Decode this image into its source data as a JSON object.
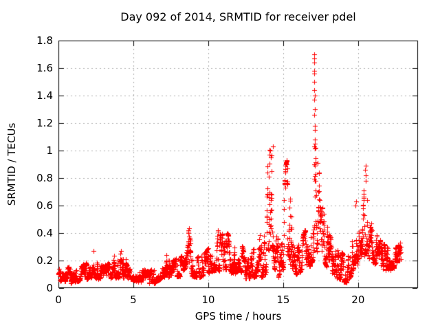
{
  "chart_data": {
    "type": "scatter",
    "title": "Day 092 of 2014, SRMTID for receiver pdel",
    "xlabel": "GPS time / hours",
    "ylabel": "SRMTID / TECUs",
    "xlim": [
      0,
      24
    ],
    "ylim": [
      0,
      1.8
    ],
    "grid": true,
    "legend": "none",
    "marker": "plus",
    "colors": {
      "marker": "#ff0000",
      "grid": "#b0b0b0",
      "axis": "#000000",
      "background": "#ffffff",
      "text": "#000000"
    },
    "xticks": {
      "values": [
        0,
        5,
        10,
        15,
        20
      ],
      "labels": [
        "0",
        "5",
        "10",
        "15",
        "20"
      ]
    },
    "yticks": {
      "values": [
        0,
        0.2,
        0.4,
        0.6,
        0.8,
        1.0,
        1.2,
        1.4,
        1.6,
        1.8
      ],
      "labels": [
        "0",
        "0.2",
        "0.4",
        "0.6",
        "0.8",
        "1",
        "1.2",
        "1.4",
        "1.6",
        "1.8"
      ]
    },
    "time_start_hours": 0.0,
    "time_end_hours": 22.85,
    "sample_interval_hours": 0.0083333,
    "band_envelope_t_lo_hi": [
      [
        0.0,
        0.06,
        0.22
      ],
      [
        0.3,
        0.05,
        0.16
      ],
      [
        0.9,
        0.04,
        0.14
      ],
      [
        1.5,
        0.06,
        0.16
      ],
      [
        2.0,
        0.07,
        0.19
      ],
      [
        2.3,
        0.09,
        0.27
      ],
      [
        2.6,
        0.07,
        0.18
      ],
      [
        3.1,
        0.06,
        0.16
      ],
      [
        3.6,
        0.08,
        0.2
      ],
      [
        4.0,
        0.08,
        0.31
      ],
      [
        4.35,
        0.08,
        0.24
      ],
      [
        4.8,
        0.07,
        0.18
      ],
      [
        5.3,
        0.05,
        0.15
      ],
      [
        5.9,
        0.03,
        0.12
      ],
      [
        6.4,
        0.04,
        0.14
      ],
      [
        6.9,
        0.08,
        0.22
      ],
      [
        7.15,
        0.09,
        0.26
      ],
      [
        7.6,
        0.08,
        0.2
      ],
      [
        8.1,
        0.09,
        0.22
      ],
      [
        8.55,
        0.12,
        0.28
      ],
      [
        8.7,
        0.13,
        0.435
      ],
      [
        8.9,
        0.09,
        0.24
      ],
      [
        9.4,
        0.08,
        0.22
      ],
      [
        9.8,
        0.1,
        0.26
      ],
      [
        10.2,
        0.12,
        0.32
      ],
      [
        10.55,
        0.14,
        0.43
      ],
      [
        10.8,
        0.12,
        0.38
      ],
      [
        11.1,
        0.14,
        0.41
      ],
      [
        11.45,
        0.12,
        0.38
      ],
      [
        11.8,
        0.11,
        0.35
      ],
      [
        12.1,
        0.14,
        0.36
      ],
      [
        12.45,
        0.07,
        0.24
      ],
      [
        12.7,
        0.05,
        0.2
      ],
      [
        13.0,
        0.08,
        0.28
      ],
      [
        13.35,
        0.1,
        0.4
      ],
      [
        13.65,
        0.08,
        0.32
      ],
      [
        13.88,
        0.12,
        0.55
      ],
      [
        13.97,
        0.3,
        0.98
      ],
      [
        14.1,
        0.25,
        1.0
      ],
      [
        14.28,
        0.3,
        1.03
      ],
      [
        14.4,
        0.15,
        0.75
      ],
      [
        14.55,
        0.1,
        0.42
      ],
      [
        14.8,
        0.07,
        0.3
      ],
      [
        15.0,
        0.15,
        0.55
      ],
      [
        15.12,
        0.25,
        0.88
      ],
      [
        15.25,
        0.3,
        0.93
      ],
      [
        15.4,
        0.2,
        0.72
      ],
      [
        15.6,
        0.15,
        0.45
      ],
      [
        15.9,
        0.09,
        0.28
      ],
      [
        16.15,
        0.12,
        0.34
      ],
      [
        16.45,
        0.18,
        0.42
      ],
      [
        16.7,
        0.15,
        0.35
      ],
      [
        16.95,
        0.2,
        0.85
      ],
      [
        17.03,
        0.25,
        1.45
      ],
      [
        17.08,
        0.3,
        1.7
      ],
      [
        17.15,
        0.3,
        1.45
      ],
      [
        17.3,
        0.25,
        1.0
      ],
      [
        17.5,
        0.2,
        0.65
      ],
      [
        17.8,
        0.18,
        0.5
      ],
      [
        18.1,
        0.12,
        0.38
      ],
      [
        18.5,
        0.08,
        0.3
      ],
      [
        18.9,
        0.06,
        0.26
      ],
      [
        19.2,
        0.04,
        0.2
      ],
      [
        19.55,
        0.1,
        0.3
      ],
      [
        19.8,
        0.18,
        0.55
      ],
      [
        19.87,
        0.2,
        0.63
      ],
      [
        20.0,
        0.15,
        0.42
      ],
      [
        20.25,
        0.14,
        0.36
      ],
      [
        20.45,
        0.25,
        0.89
      ],
      [
        20.6,
        0.25,
        0.8
      ],
      [
        20.8,
        0.2,
        0.5
      ],
      [
        21.1,
        0.18,
        0.42
      ],
      [
        21.5,
        0.15,
        0.34
      ],
      [
        21.9,
        0.13,
        0.3
      ],
      [
        22.3,
        0.14,
        0.28
      ],
      [
        22.6,
        0.17,
        0.3
      ],
      [
        22.85,
        0.2,
        0.33
      ]
    ],
    "notable_points_x_y": [
      [
        17.06,
        1.7
      ],
      [
        17.07,
        1.67
      ],
      [
        17.05,
        1.64
      ],
      [
        17.08,
        1.58
      ],
      [
        17.06,
        1.56
      ],
      [
        17.09,
        1.5
      ],
      [
        17.07,
        1.44
      ],
      [
        17.1,
        1.4
      ],
      [
        17.08,
        1.37
      ],
      [
        17.11,
        1.3
      ],
      [
        17.09,
        1.26
      ],
      [
        17.12,
        1.18
      ],
      [
        17.1,
        1.15
      ],
      [
        17.13,
        1.08
      ],
      [
        17.11,
        1.05
      ],
      [
        17.14,
        1.02
      ],
      [
        14.3,
        1.03
      ],
      [
        14.12,
        1.0
      ],
      [
        14.08,
        0.97
      ],
      [
        14.18,
        0.95
      ],
      [
        15.25,
        0.93
      ],
      [
        15.22,
        0.9
      ],
      [
        15.3,
        0.87
      ],
      [
        20.5,
        0.89
      ],
      [
        20.47,
        0.86
      ],
      [
        20.53,
        0.82
      ],
      [
        20.49,
        0.78
      ],
      [
        8.7,
        0.435
      ],
      [
        8.68,
        0.41
      ],
      [
        2.32,
        0.27
      ],
      [
        19.86,
        0.63
      ],
      [
        19.84,
        0.6
      ]
    ],
    "render_seed": 1337
  }
}
